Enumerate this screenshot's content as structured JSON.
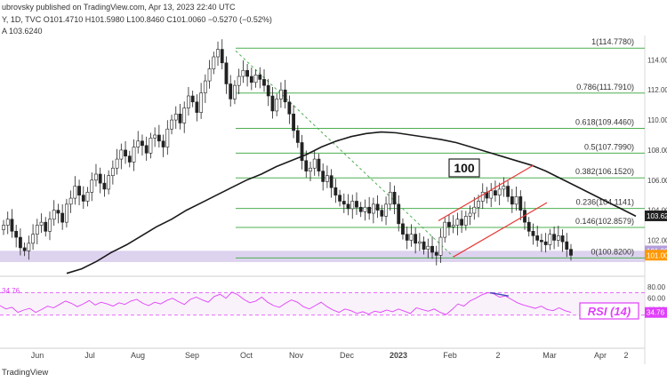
{
  "header": {
    "published": "ubrovsky published on TradingView.com, Apr 13, 2023 22:40 UTC",
    "ohlc": "Y, 1D, TVC  O101.4710  H101.5980  L100.8460  C101.0060  −0.5270 (−0.52%)",
    "ma": "A  103.6240"
  },
  "chart_data": {
    "type": "candlestick",
    "y_axis": {
      "range": [
        99.9,
        115.5
      ],
      "ticks": [
        "114.000",
        "112.000",
        "110.000",
        "108.000",
        "106.000",
        "104.000",
        "102.000"
      ]
    },
    "x_axis": {
      "labels": [
        "Jun",
        "Jul",
        "Aug",
        "Sep",
        "Oct",
        "Nov",
        "Dec",
        "2023",
        "Feb",
        "2",
        "Mar",
        "Apr",
        "2"
      ]
    },
    "fib_levels": [
      {
        "label": "1(114.7780)",
        "value": 114.778
      },
      {
        "label": "0.786(111.7910)",
        "value": 111.791
      },
      {
        "label": "0.618(109.4460)",
        "value": 109.446
      },
      {
        "label": "0.5(107.7990)",
        "value": 107.799
      },
      {
        "label": "0.382(106.1520)",
        "value": 106.152
      },
      {
        "label": "0.236(104.1141)",
        "value": 104.1141
      },
      {
        "label": "0.146(102.8579)",
        "value": 102.8579
      },
      {
        "label": "0(100.8200)",
        "value": 100.82
      }
    ],
    "price_badges": [
      {
        "label": "103.62",
        "value": 103.624,
        "color": "#222222"
      },
      {
        "label": "101.29",
        "value": 101.29,
        "color": "#b39ddb"
      },
      {
        "label": "101.00",
        "value": 101.006,
        "color": "#ff9800"
      }
    ],
    "ma_label": "100",
    "rsi": {
      "label": "RSI (14)",
      "current": "34.76",
      "ticks": [
        "80.00",
        "60.00",
        "40.00"
      ],
      "range": [
        28,
        88
      ],
      "overbought": 70,
      "oversold": 30
    },
    "close_series": [
      103.0,
      103.4,
      102.6,
      102.2,
      101.5,
      101.3,
      101.8,
      102.4,
      103.0,
      103.2,
      102.6,
      103.4,
      104.0,
      103.8,
      103.2,
      104.4,
      104.8,
      105.6,
      105.0,
      104.6,
      105.2,
      106.0,
      106.4,
      105.8,
      105.4,
      106.3,
      106.8,
      107.4,
      108.0,
      107.6,
      107.2,
      108.2,
      108.6,
      108.3,
      107.8,
      108.8,
      109.0,
      108.6,
      108.2,
      109.4,
      110.0,
      110.4,
      109.8,
      110.8,
      111.6,
      111.2,
      110.5,
      111.8,
      112.6,
      113.4,
      114.2,
      114.7,
      113.8,
      112.4,
      111.4,
      112.3,
      112.9,
      113.3,
      112.9,
      112.5,
      113.0,
      112.7,
      112.3,
      111.6,
      110.6,
      111.4,
      112.0,
      111.2,
      110.4,
      109.3,
      108.5,
      107.3,
      106.6,
      106.8,
      107.4,
      106.6,
      105.9,
      106.3,
      105.5,
      105.0,
      104.6,
      104.4,
      104.1,
      104.6,
      104.2,
      103.9,
      104.2,
      103.8,
      104.4,
      104.0,
      103.6,
      104.4,
      105.2,
      104.4,
      103.1,
      102.4,
      102.0,
      102.4,
      101.8,
      101.9,
      101.4,
      101.6,
      101.2,
      101.0,
      102.2,
      103.2,
      102.9,
      103.0,
      103.4,
      103.0,
      103.6,
      103.8,
      104.2,
      104.6,
      105.2,
      104.8,
      105.3,
      105.0,
      105.4,
      105.6,
      104.9,
      104.4,
      104.9,
      104.0,
      103.2,
      102.6,
      102.3,
      102.0,
      101.9,
      101.7,
      102.4,
      102.0,
      102.3,
      101.9,
      101.4,
      101.0
    ],
    "ma_series": [
      99.8,
      100.1,
      100.6,
      101.2,
      101.7,
      102.3,
      102.9,
      103.4,
      104.0,
      104.5,
      105.0,
      105.5,
      106.0,
      106.4,
      106.9,
      107.3,
      107.7,
      108.2,
      108.6,
      108.9,
      109.1,
      109.2,
      109.15,
      109.0,
      108.85,
      108.7,
      108.5,
      108.2,
      107.9,
      107.6,
      107.3,
      107.0,
      106.6,
      106.1,
      105.6,
      105.1,
      104.6,
      104.1,
      103.6
    ],
    "rsi_series": [
      47,
      41,
      44,
      35,
      39,
      42,
      35,
      40,
      46,
      43,
      49,
      55,
      51,
      45,
      50,
      56,
      48,
      53,
      50,
      46,
      52,
      49,
      55,
      58,
      51,
      47,
      53,
      50,
      56,
      60,
      54,
      49,
      58,
      62,
      57,
      53,
      63,
      67,
      60,
      71,
      66,
      58,
      52,
      55,
      62,
      53,
      47,
      44,
      51,
      57,
      53,
      45,
      41,
      47,
      53,
      45,
      39,
      35,
      41,
      38,
      33,
      36,
      32,
      37,
      35,
      39,
      36,
      41,
      37,
      33,
      43,
      40,
      37,
      41,
      35,
      31,
      40,
      50,
      46,
      55,
      60,
      66,
      70,
      68,
      62,
      64,
      58,
      52,
      48,
      45,
      42,
      46,
      40,
      38,
      43,
      38,
      35
    ]
  },
  "footer": {
    "brand": "TradingView"
  }
}
